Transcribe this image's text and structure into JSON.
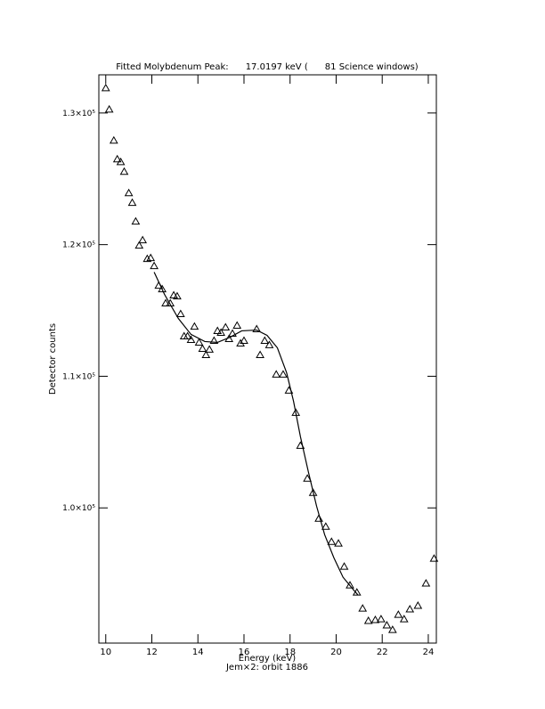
{
  "chart_data": {
    "type": "scatter",
    "title": "Fitted Molybdenum Peak:      17.0197 keV (      81 Science windows)",
    "x_label": "Energy (keV)",
    "subtitle": "Jem×2: orbit 1886",
    "y_label": "Detector counts",
    "xlim": [
      9.7,
      24.35
    ],
    "ylim": [
      89730,
      132900
    ],
    "xticks": [
      10,
      12,
      14,
      16,
      18,
      20,
      22,
      24
    ],
    "yticks": [
      {
        "value": 100000,
        "label": "1.0×10⁵"
      },
      {
        "value": 110000,
        "label": "1.1×10⁵"
      },
      {
        "value": 120000,
        "label": "1.2×10⁵"
      },
      {
        "value": 130000,
        "label": "1.3×10⁵"
      }
    ],
    "series": [
      {
        "style": "triangle",
        "color": "#000000",
        "x": [
          10.0,
          10.15,
          10.35,
          10.5,
          10.65,
          10.8,
          11.0,
          11.15,
          11.3,
          11.45,
          11.6,
          11.8,
          11.95,
          12.1,
          12.3,
          12.45,
          12.6,
          12.8,
          12.95,
          13.1,
          13.25,
          13.4,
          13.55,
          13.7,
          13.85,
          14.05,
          14.2,
          14.35,
          14.5,
          14.7,
          14.85,
          15.0,
          15.2,
          15.35,
          15.5,
          15.7,
          15.85,
          16.0,
          16.55,
          16.7,
          16.9,
          17.1,
          17.4,
          17.7,
          17.95,
          18.25,
          18.45,
          18.75,
          19.0,
          19.25,
          19.55,
          19.8,
          20.1,
          20.35,
          20.6,
          20.9,
          21.15,
          21.4,
          21.7,
          21.95,
          22.2,
          22.45,
          22.7,
          22.95,
          23.2,
          23.55,
          23.9,
          24.25
        ],
        "values": [
          131890,
          130270,
          127910,
          126490,
          126280,
          125540,
          123920,
          123180,
          121760,
          119930,
          120340,
          118920,
          118990,
          118380,
          116890,
          116620,
          115540,
          115540,
          116150,
          116080,
          114730,
          113040,
          113040,
          112770,
          113780,
          112570,
          112090,
          111620,
          112030,
          112700,
          113450,
          113310,
          113720,
          112840,
          113240,
          113850,
          112500,
          112700,
          113580,
          111620,
          112700,
          112370,
          110140,
          110140,
          108920,
          107230,
          104730,
          102230,
          101150,
          99190,
          98580,
          97430,
          97300,
          95540,
          94120,
          93580,
          92360,
          91420,
          91490,
          91550,
          91080,
          90740,
          91890,
          91550,
          92300,
          92570,
          94260,
          96150
        ]
      },
      {
        "style": "line",
        "color": "#000000",
        "x": [
          12.1,
          12.55,
          13.15,
          13.7,
          14.3,
          14.85,
          15.4,
          15.9,
          16.55,
          17.0,
          17.45,
          17.85,
          18.15,
          18.45,
          18.8,
          19.15,
          19.5,
          19.9,
          20.3,
          20.75,
          20.95
        ],
        "values": [
          117910,
          116220,
          114390,
          113180,
          112640,
          112570,
          112970,
          113450,
          113510,
          113110,
          112160,
          110270,
          108110,
          105410,
          102700,
          100140,
          97970,
          96220,
          94730,
          93780,
          93380
        ]
      }
    ]
  }
}
